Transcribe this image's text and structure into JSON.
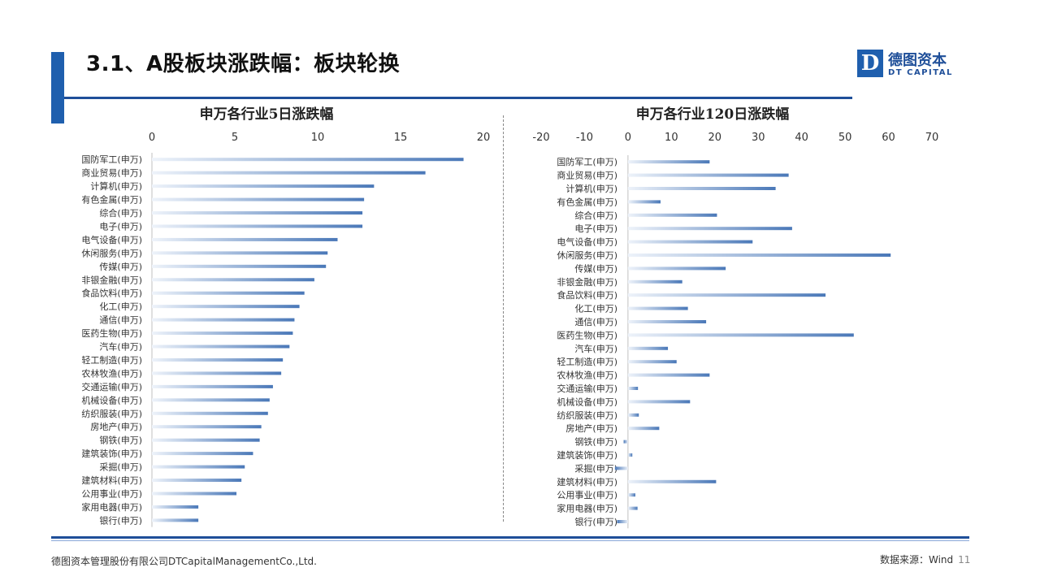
{
  "header": {
    "title": "3.1、A股板块涨跌幅：板块轮换",
    "logo_mark": "D",
    "logo_cn": "德图资本",
    "logo_en": "DT CAPITAL"
  },
  "footer": {
    "company": "德图资本管理股份有限公司DTCapitalManagementCo.,Ltd.",
    "source": "数据来源：Wind",
    "page": "11"
  },
  "colors": {
    "accent": "#1f5fae",
    "bar_dark": "#4a78b8",
    "bar_light": "#eef3fa"
  },
  "chart_data": [
    {
      "type": "bar",
      "orientation": "horizontal",
      "title": "申万各行业5日涨跌幅",
      "xlim": [
        0,
        20
      ],
      "ticks": [
        0,
        5,
        10,
        15,
        20
      ],
      "tick_labels": [
        "0",
        "5",
        "10",
        "15",
        "20"
      ],
      "axis_position": "top",
      "grid": false,
      "categories": [
        "国防军工(申万)",
        "商业贸易(申万)",
        "计算机(申万)",
        "有色金属(申万)",
        "综合(申万)",
        "电子(申万)",
        "电气设备(申万)",
        "休闲服务(申万)",
        "传媒(申万)",
        "非银金融(申万)",
        "食品饮料(申万)",
        "化工(申万)",
        "通信(申万)",
        "医药生物(申万)",
        "汽车(申万)",
        "轻工制造(申万)",
        "农林牧渔(申万)",
        "交通运输(申万)",
        "机械设备(申万)",
        "纺织服装(申万)",
        "房地产(申万)",
        "钢铁(申万)",
        "建筑装饰(申万)",
        "采掘(申万)",
        "建筑材料(申万)",
        "公用事业(申万)",
        "家用电器(申万)",
        "银行(申万)"
      ],
      "values": [
        18.8,
        16.5,
        13.4,
        12.8,
        12.7,
        12.7,
        11.2,
        10.6,
        10.5,
        9.8,
        9.2,
        8.9,
        8.6,
        8.5,
        8.3,
        7.9,
        7.8,
        7.3,
        7.1,
        7.0,
        6.6,
        6.5,
        6.1,
        5.6,
        5.4,
        5.1,
        2.8,
        2.8
      ]
    },
    {
      "type": "bar",
      "orientation": "horizontal",
      "title": "申万各行业120日涨跌幅",
      "xlim": [
        -20,
        70
      ],
      "ticks": [
        -20,
        -10,
        0,
        10,
        20,
        30,
        40,
        50,
        60,
        70
      ],
      "tick_labels": [
        "-20",
        "-10",
        "0",
        "10",
        "20",
        "30",
        "40",
        "50",
        "60",
        "70"
      ],
      "axis_position": "top",
      "grid": false,
      "categories": [
        "国防军工(申万)",
        "商业贸易(申万)",
        "计算机(申万)",
        "有色金属(申万)",
        "综合(申万)",
        "电子(申万)",
        "电气设备(申万)",
        "休闲服务(申万)",
        "传媒(申万)",
        "非银金融(申万)",
        "食品饮料(申万)",
        "化工(申万)",
        "通信(申万)",
        "医药生物(申万)",
        "汽车(申万)",
        "轻工制造(申万)",
        "农林牧渔(申万)",
        "交通运输(申万)",
        "机械设备(申万)",
        "纺织服装(申万)",
        "房地产(申万)",
        "钢铁(申万)",
        "建筑装饰(申万)",
        "采掘(申万)",
        "建筑材料(申万)",
        "公用事业(申万)",
        "家用电器(申万)",
        "银行(申万)"
      ],
      "values": [
        18.8,
        37.0,
        34.0,
        7.5,
        20.5,
        37.8,
        28.7,
        60.5,
        22.5,
        12.5,
        45.5,
        13.8,
        18.0,
        52.0,
        9.2,
        11.2,
        18.8,
        2.3,
        14.3,
        2.5,
        7.2,
        -1.0,
        1.0,
        -3.0,
        20.3,
        1.7,
        2.2,
        -2.5
      ]
    }
  ]
}
